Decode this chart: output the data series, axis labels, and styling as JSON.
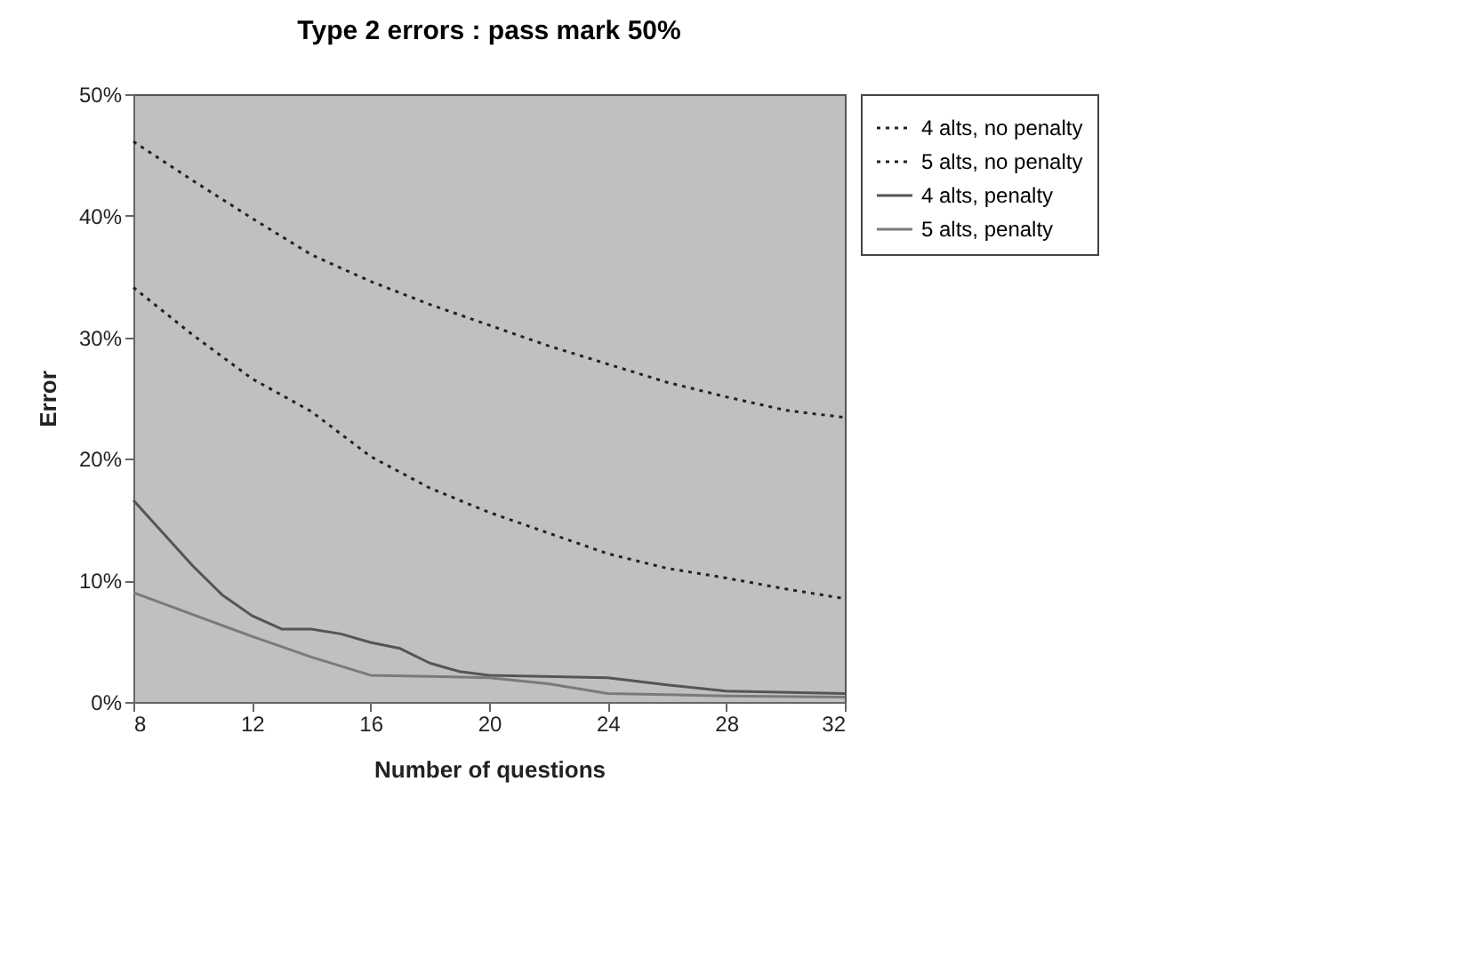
{
  "chart_data": {
    "type": "line",
    "title": "Type 2 errors : pass mark 50%",
    "xlabel": "Number of questions",
    "ylabel": "Error",
    "xlim": [
      8,
      32
    ],
    "xticks": [
      8,
      12,
      16,
      20,
      24,
      28,
      32
    ],
    "ylim": [
      0,
      50
    ],
    "yticks": [
      {
        "value": 0,
        "label": "0%"
      },
      {
        "value": 10,
        "label": "10%"
      },
      {
        "value": 20,
        "label": "20%"
      },
      {
        "value": 30,
        "label": "30%"
      },
      {
        "value": 40,
        "label": "40%"
      },
      {
        "value": 50,
        "label": "50%"
      }
    ],
    "grid": false,
    "legend": "right",
    "marker": "none",
    "series": [
      {
        "name": "4 alts, no penalty",
        "color": "#222222",
        "line_style": "dotted",
        "x": [
          8,
          10,
          12,
          14,
          16,
          18,
          20,
          22,
          24,
          26,
          28,
          30,
          32
        ],
        "values": [
          46.1,
          42.9,
          39.8,
          36.8,
          34.6,
          32.7,
          31.0,
          29.3,
          27.8,
          26.3,
          25.1,
          24.0,
          23.4
        ]
      },
      {
        "name": "5 alts, no penalty",
        "color": "#222222",
        "line_style": "dotted",
        "x": [
          8,
          10,
          12,
          14,
          16,
          18,
          20,
          22,
          24,
          26,
          28,
          30,
          32
        ],
        "values": [
          34.1,
          30.2,
          26.6,
          23.9,
          20.2,
          17.6,
          15.6,
          13.9,
          12.2,
          11.0,
          10.2,
          9.3,
          8.5
        ]
      },
      {
        "name": "4 alts, penalty",
        "color": "#555555",
        "line_style": "solid",
        "x": [
          8,
          10,
          11,
          12,
          13,
          14,
          15,
          16,
          17,
          18,
          19,
          20,
          24,
          26,
          28,
          32
        ],
        "values": [
          16.6,
          11.2,
          8.8,
          7.1,
          6.0,
          6.0,
          5.6,
          4.9,
          4.4,
          3.2,
          2.5,
          2.2,
          2.0,
          1.4,
          0.9,
          0.7
        ]
      },
      {
        "name": "5 alts, penalty",
        "color": "#7a7a7a",
        "line_style": "solid",
        "x": [
          8,
          12,
          14,
          16,
          20,
          22,
          24,
          28,
          32
        ],
        "values": [
          9.0,
          5.4,
          3.7,
          2.2,
          2.0,
          1.5,
          0.7,
          0.5,
          0.4
        ]
      }
    ]
  }
}
